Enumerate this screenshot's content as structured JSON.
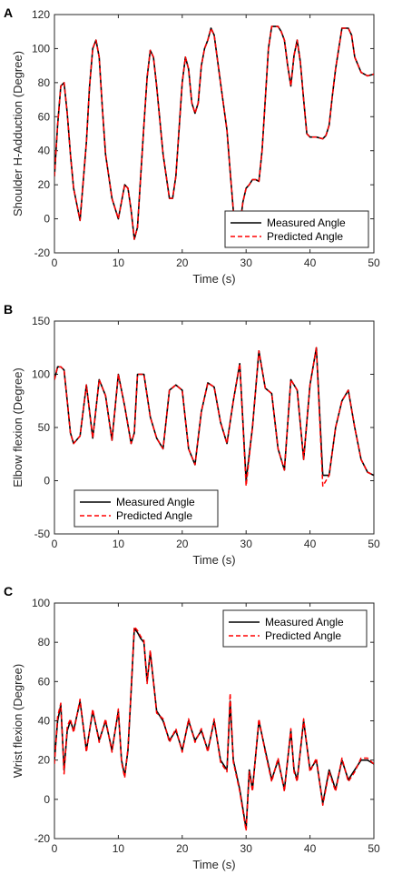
{
  "chart_data": [
    {
      "type": "line",
      "panel_label": "A",
      "xlabel": "Time (s)",
      "ylabel": "Shoulder H-Adduction (Degree)",
      "xlim": [
        0,
        50
      ],
      "ylim": [
        -20,
        120
      ],
      "xticks": [
        0,
        10,
        20,
        30,
        40,
        50
      ],
      "yticks": [
        -20,
        0,
        20,
        40,
        60,
        80,
        100,
        120
      ],
      "legend_position": "bottom-right",
      "series": [
        {
          "name": "Measured Angle",
          "color": "#000000",
          "style": "solid",
          "x": [
            0,
            0.5,
            1,
            1.5,
            2,
            2.5,
            3,
            4,
            5,
            5.5,
            6,
            6.5,
            7,
            7.5,
            8,
            9,
            10,
            10.5,
            11,
            11.5,
            12,
            12.5,
            13,
            14,
            14.5,
            15,
            15.5,
            16,
            17,
            18,
            18.5,
            19,
            20,
            20.5,
            21,
            21.5,
            22,
            22.5,
            23,
            23.5,
            24,
            24.5,
            25,
            26,
            27,
            27.5,
            28,
            28.5,
            29,
            29.5,
            30,
            30.5,
            31,
            31.5,
            32,
            32.5,
            33,
            33.5,
            34,
            35,
            35.5,
            36,
            36.5,
            37,
            37.5,
            38,
            38.5,
            39,
            39.5,
            40,
            41,
            42,
            42.5,
            43,
            43.5,
            44,
            44.5,
            45,
            46,
            46.5,
            47,
            48,
            49,
            50
          ],
          "y": [
            25,
            55,
            78,
            80,
            62,
            38,
            18,
            -1,
            45,
            78,
            100,
            105,
            95,
            65,
            38,
            12,
            0,
            10,
            20,
            18,
            5,
            -12,
            -5,
            55,
            83,
            99,
            95,
            78,
            38,
            12,
            12,
            25,
            80,
            95,
            88,
            68,
            62,
            68,
            90,
            100,
            105,
            112,
            108,
            80,
            52,
            28,
            5,
            -15,
            -5,
            10,
            18,
            20,
            23,
            23,
            22,
            40,
            70,
            100,
            113,
            113,
            110,
            105,
            90,
            78,
            96,
            105,
            92,
            70,
            50,
            48,
            48,
            47,
            49,
            55,
            72,
            88,
            100,
            112,
            112,
            108,
            95,
            86,
            84,
            85
          ]
        },
        {
          "name": "Predicted Angle",
          "color": "#ff0000",
          "style": "dashed",
          "x": [
            0,
            0.5,
            1,
            1.5,
            2,
            2.5,
            3,
            4,
            5,
            5.5,
            6,
            6.5,
            7,
            7.5,
            8,
            9,
            10,
            10.5,
            11,
            11.5,
            12,
            12.5,
            13,
            14,
            14.5,
            15,
            15.5,
            16,
            17,
            18,
            18.5,
            19,
            20,
            20.5,
            21,
            21.5,
            22,
            22.5,
            23,
            23.5,
            24,
            24.5,
            25,
            26,
            27,
            27.5,
            28,
            28.5,
            29,
            29.5,
            30,
            30.5,
            31,
            31.5,
            32,
            32.5,
            33,
            33.5,
            34,
            35,
            35.5,
            36,
            36.5,
            37,
            37.5,
            38,
            38.5,
            39,
            39.5,
            40,
            41,
            42,
            42.5,
            43,
            43.5,
            44,
            44.5,
            45,
            46,
            46.5,
            47,
            48,
            49,
            50
          ],
          "y": [
            25,
            55,
            78,
            80,
            62,
            38,
            18,
            -1,
            45,
            78,
            100,
            105,
            95,
            65,
            38,
            12,
            0,
            10,
            20,
            18,
            5,
            -12,
            -5,
            55,
            83,
            99,
            95,
            78,
            38,
            12,
            12,
            25,
            80,
            95,
            88,
            68,
            62,
            68,
            90,
            100,
            105,
            112,
            108,
            80,
            52,
            28,
            5,
            -15,
            -5,
            10,
            18,
            20,
            23,
            23,
            22,
            40,
            70,
            100,
            113,
            113,
            110,
            105,
            90,
            78,
            96,
            105,
            92,
            70,
            50,
            48,
            48,
            47,
            49,
            55,
            72,
            88,
            100,
            112,
            112,
            108,
            95,
            86,
            84,
            85
          ]
        }
      ]
    },
    {
      "type": "line",
      "panel_label": "B",
      "xlabel": "Time (s)",
      "ylabel": "Elbow flexion (Degree)",
      "xlim": [
        0,
        50
      ],
      "ylim": [
        -50,
        150
      ],
      "xticks": [
        0,
        10,
        20,
        30,
        40,
        50
      ],
      "yticks": [
        -50,
        0,
        50,
        100,
        150
      ],
      "legend_position": "bottom-left",
      "series": [
        {
          "name": "Measured Angle",
          "color": "#000000",
          "style": "solid",
          "x": [
            0,
            0.5,
            1,
            1.5,
            2,
            2.5,
            3,
            4,
            5,
            6,
            7,
            8,
            9,
            10,
            11,
            12,
            12.5,
            13,
            14,
            15,
            16,
            17,
            18,
            19,
            20,
            21,
            22,
            23,
            24,
            25,
            26,
            27,
            28,
            29,
            30,
            31,
            32,
            33,
            34,
            35,
            36,
            37,
            38,
            39,
            40,
            41,
            42,
            43,
            44,
            45,
            46,
            47,
            48,
            49,
            50
          ],
          "y": [
            95,
            107,
            107,
            104,
            75,
            45,
            35,
            42,
            90,
            40,
            95,
            80,
            38,
            100,
            70,
            35,
            45,
            100,
            100,
            60,
            40,
            30,
            85,
            90,
            85,
            30,
            15,
            65,
            92,
            88,
            55,
            35,
            75,
            110,
            0,
            50,
            122,
            87,
            82,
            30,
            10,
            95,
            85,
            20,
            90,
            125,
            5,
            5,
            50,
            75,
            85,
            50,
            20,
            8,
            5
          ]
        },
        {
          "name": "Predicted Angle",
          "color": "#ff0000",
          "style": "dashed",
          "x": [
            0,
            0.5,
            1,
            1.5,
            2,
            2.5,
            3,
            4,
            5,
            6,
            7,
            8,
            9,
            10,
            11,
            12,
            12.5,
            13,
            14,
            15,
            16,
            17,
            18,
            19,
            20,
            21,
            22,
            23,
            24,
            25,
            26,
            27,
            28,
            29,
            30,
            31,
            32,
            33,
            34,
            35,
            36,
            37,
            38,
            39,
            40,
            41,
            42,
            43,
            44,
            45,
            46,
            47,
            48,
            49,
            50
          ],
          "y": [
            95,
            107,
            107,
            104,
            75,
            45,
            35,
            42,
            90,
            40,
            95,
            80,
            38,
            100,
            70,
            35,
            45,
            100,
            100,
            60,
            40,
            30,
            85,
            90,
            85,
            30,
            15,
            65,
            92,
            88,
            55,
            35,
            75,
            110,
            -5,
            50,
            122,
            87,
            82,
            30,
            10,
            95,
            85,
            20,
            90,
            125,
            -5,
            5,
            50,
            75,
            85,
            50,
            20,
            8,
            5
          ]
        }
      ]
    },
    {
      "type": "line",
      "panel_label": "C",
      "xlabel": "Time (s)",
      "ylabel": "Wrist flexion (Degree)",
      "xlim": [
        0,
        50
      ],
      "ylim": [
        -20,
        100
      ],
      "xticks": [
        0,
        10,
        20,
        30,
        40,
        50
      ],
      "yticks": [
        -20,
        0,
        20,
        40,
        60,
        80,
        100
      ],
      "legend_position": "top-right",
      "series": [
        {
          "name": "Measured Angle",
          "color": "#000000",
          "style": "solid",
          "x": [
            0,
            0.5,
            1,
            1.5,
            2,
            2.5,
            3,
            4,
            5,
            6,
            7,
            8,
            9,
            10,
            10.5,
            11,
            11.5,
            12,
            12.5,
            13,
            13.5,
            14,
            14.5,
            15,
            16,
            17,
            18,
            19,
            20,
            21,
            22,
            23,
            24,
            25,
            26,
            27,
            27.5,
            28,
            29,
            30,
            30.5,
            31,
            32,
            33,
            34,
            35,
            36,
            37,
            37.5,
            38,
            39,
            40,
            41,
            42,
            43,
            44,
            45,
            46,
            47,
            48,
            49,
            50
          ],
          "y": [
            20,
            40,
            48,
            15,
            35,
            40,
            35,
            50,
            25,
            45,
            30,
            40,
            25,
            45,
            20,
            12,
            25,
            55,
            87,
            85,
            82,
            80,
            60,
            75,
            45,
            40,
            30,
            35,
            25,
            40,
            30,
            35,
            25,
            40,
            20,
            15,
            50,
            20,
            5,
            -15,
            15,
            5,
            40,
            25,
            10,
            20,
            5,
            35,
            15,
            10,
            40,
            15,
            20,
            -2,
            15,
            5,
            20,
            10,
            15,
            20,
            20,
            18
          ]
        },
        {
          "name": "Predicted Angle",
          "color": "#ff0000",
          "style": "dashed",
          "x": [
            0,
            0.5,
            1,
            1.5,
            2,
            2.5,
            3,
            4,
            5,
            6,
            7,
            8,
            9,
            10,
            10.5,
            11,
            11.5,
            12,
            12.5,
            13,
            13.5,
            14,
            14.5,
            15,
            16,
            17,
            18,
            19,
            20,
            21,
            22,
            23,
            24,
            25,
            26,
            27,
            27.5,
            28,
            29,
            30,
            30.5,
            31,
            32,
            33,
            34,
            35,
            36,
            37,
            37.5,
            38,
            39,
            40,
            41,
            42,
            43,
            44,
            45,
            46,
            47,
            48,
            49,
            50
          ],
          "y": [
            18,
            42,
            49,
            13,
            37,
            41,
            34,
            51,
            24,
            46,
            29,
            41,
            24,
            46,
            19,
            11,
            26,
            56,
            88,
            86,
            83,
            81,
            59,
            76,
            44,
            41,
            29,
            36,
            24,
            41,
            29,
            36,
            24,
            41,
            19,
            14,
            54,
            19,
            4,
            -16,
            14,
            4,
            41,
            24,
            9,
            21,
            4,
            36,
            14,
            9,
            41,
            14,
            21,
            -3,
            14,
            4,
            21,
            9,
            14,
            21,
            21,
            18
          ]
        }
      ]
    }
  ]
}
